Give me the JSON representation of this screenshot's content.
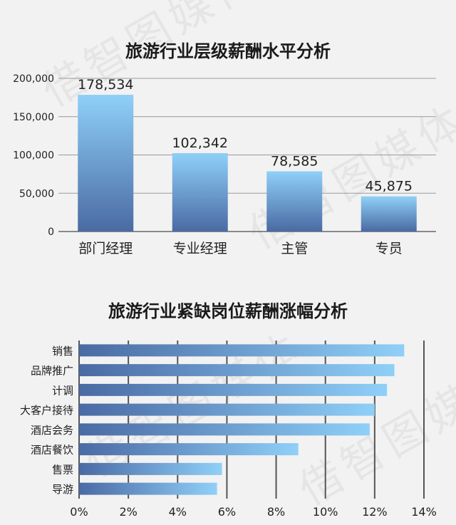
{
  "watermark": "借智图媒体",
  "chart_data": [
    {
      "type": "bar",
      "title": "旅游行业层级薪酬水平分析",
      "categories": [
        "部门经理",
        "专业经理",
        "主管",
        "专员"
      ],
      "values": [
        178534,
        102342,
        78585,
        45875
      ],
      "value_labels": [
        "178,534",
        "102,342",
        "78,585",
        "45,875"
      ],
      "yticks": [
        0,
        50000,
        100000,
        150000,
        200000
      ],
      "ytick_labels": [
        "0",
        "50,000",
        "100,000",
        "150,000",
        "200,000"
      ],
      "ylim": [
        0,
        200000
      ],
      "grid": true,
      "colors": {
        "top": "#8fd0f8",
        "bottom": "#4a6aa4"
      }
    },
    {
      "type": "bar",
      "orientation": "horizontal",
      "title": "旅游行业紧缺岗位薪酬涨幅分析",
      "categories": [
        "销售",
        "品牌推广",
        "计调",
        "大客户接待",
        "酒店会务",
        "酒店餐饮",
        "售票",
        "导游"
      ],
      "values": [
        13.2,
        12.8,
        12.5,
        12.0,
        11.8,
        8.9,
        5.8,
        5.6
      ],
      "xticks": [
        0,
        2,
        4,
        6,
        8,
        10,
        12,
        14
      ],
      "xtick_labels": [
        "0%",
        "2%",
        "4%",
        "6%",
        "8%",
        "10%",
        "12%",
        "14%"
      ],
      "xlim": [
        0,
        14
      ],
      "grid": true,
      "colors": {
        "left": "#4a6aa4",
        "right": "#8fd0f8"
      }
    }
  ]
}
